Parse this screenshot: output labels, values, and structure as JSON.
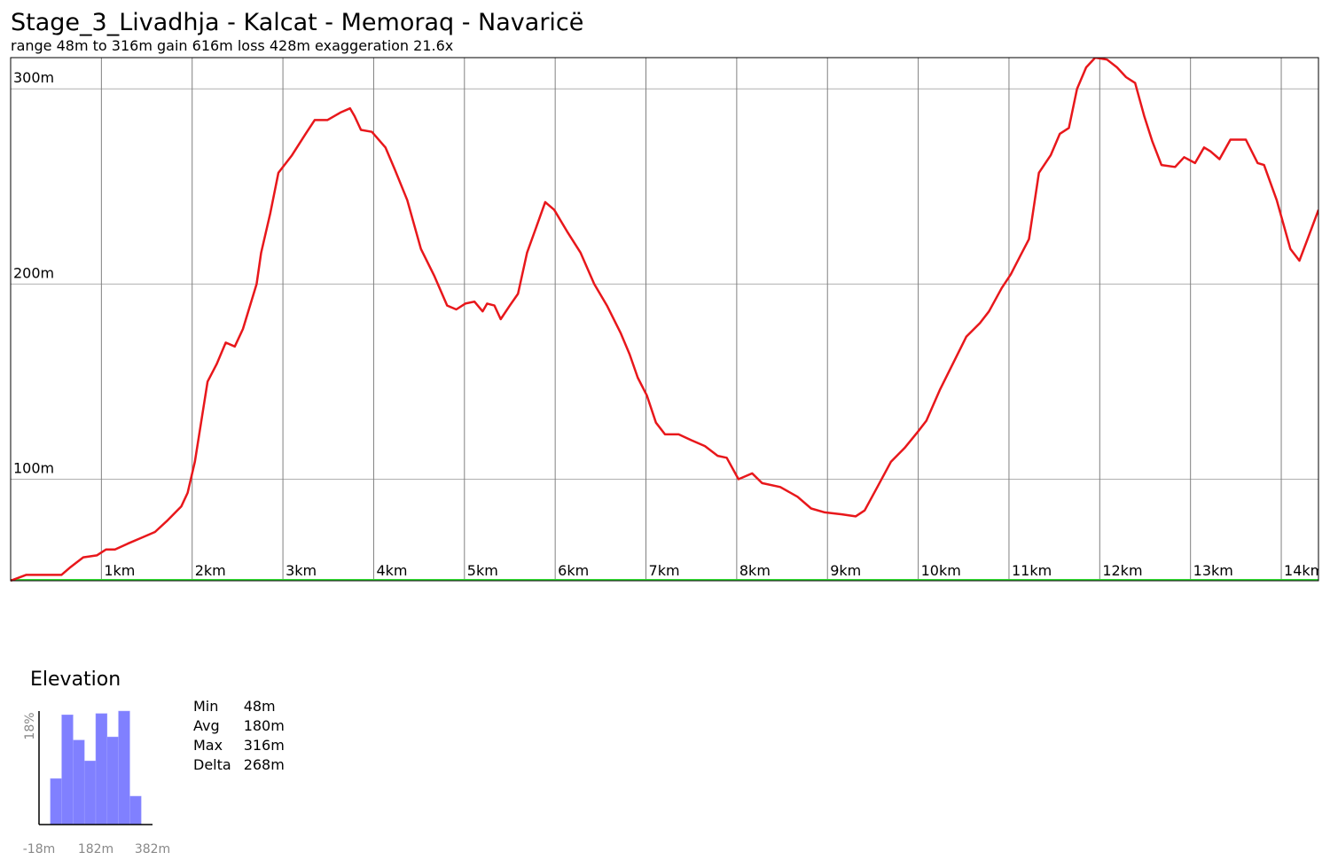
{
  "chart_data": [
    {
      "type": "line",
      "title": "Stage_3_Livadhja - Kalcat - Memoraq - Navaricë",
      "subtitle": "range 48m to 316m  gain 616m  loss 428m  exaggeration 21.6x",
      "x": [
        0.0,
        0.17,
        0.36,
        0.56,
        0.66,
        0.8,
        0.95,
        1.05,
        1.15,
        1.29,
        1.44,
        1.59,
        1.73,
        1.88,
        1.95,
        2.03,
        2.17,
        2.27,
        2.37,
        2.47,
        2.56,
        2.71,
        2.76,
        2.86,
        2.95,
        3.1,
        3.25,
        3.35,
        3.49,
        3.64,
        3.74,
        3.79,
        3.86,
        3.98,
        4.13,
        4.23,
        4.37,
        4.52,
        4.67,
        4.81,
        4.91,
        5.01,
        5.11,
        5.2,
        5.25,
        5.33,
        5.4,
        5.5,
        5.59,
        5.69,
        5.79,
        5.89,
        5.99,
        6.13,
        6.28,
        6.43,
        6.57,
        6.72,
        6.82,
        6.91,
        7.01,
        7.11,
        7.21,
        7.36,
        7.5,
        7.65,
        7.79,
        7.89,
        8.02,
        8.17,
        8.28,
        8.48,
        8.67,
        8.82,
        8.97,
        9.16,
        9.31,
        9.41,
        9.55,
        9.7,
        9.85,
        9.99,
        10.09,
        10.24,
        10.38,
        10.53,
        10.68,
        10.78,
        10.92,
        11.02,
        11.12,
        11.22,
        11.33,
        11.46,
        11.56,
        11.66,
        11.75,
        11.85,
        11.95,
        12.08,
        12.19,
        12.29,
        12.39,
        12.49,
        12.58,
        12.68,
        12.83,
        12.93,
        13.05,
        13.15,
        13.22,
        13.32,
        13.44,
        13.61,
        13.74,
        13.81,
        13.95,
        14.1,
        14.2,
        14.29,
        14.41
      ],
      "values": [
        48,
        51,
        51,
        51,
        55,
        60,
        61,
        64,
        64,
        67,
        70,
        73,
        79,
        86,
        93,
        109,
        150,
        159,
        170,
        168,
        177,
        200,
        216,
        236,
        257,
        266,
        277,
        284,
        284,
        288,
        290,
        286,
        279,
        278,
        270,
        259,
        243,
        218,
        204,
        189,
        187,
        190,
        191,
        186,
        190,
        189,
        182,
        189,
        195,
        216,
        229,
        242,
        238,
        227,
        216,
        200,
        189,
        175,
        164,
        152,
        143,
        129,
        123,
        123,
        120,
        117,
        112,
        111,
        100,
        103,
        98,
        96,
        91,
        85,
        83,
        82,
        81,
        84,
        96,
        109,
        116,
        124,
        130,
        146,
        159,
        173,
        180,
        186,
        198,
        205,
        214,
        223,
        257,
        266,
        277,
        280,
        300,
        311,
        316,
        315,
        311,
        306,
        303,
        286,
        273,
        261,
        260,
        265,
        262,
        270,
        268,
        264,
        274,
        274,
        262,
        261,
        243,
        218,
        212,
        223,
        238
      ],
      "color": "#e8171b",
      "xlim": [
        0,
        14.41
      ],
      "ylim": [
        48,
        316
      ],
      "xticks": [
        {
          "value": 1,
          "label": "1km"
        },
        {
          "value": 2,
          "label": "2km"
        },
        {
          "value": 3,
          "label": "3km"
        },
        {
          "value": 4,
          "label": "4km"
        },
        {
          "value": 5,
          "label": "5km"
        },
        {
          "value": 6,
          "label": "6km"
        },
        {
          "value": 7,
          "label": "7km"
        },
        {
          "value": 8,
          "label": "8km"
        },
        {
          "value": 9,
          "label": "9km"
        },
        {
          "value": 10,
          "label": "10km"
        },
        {
          "value": 11,
          "label": "11km"
        },
        {
          "value": 12,
          "label": "12km"
        },
        {
          "value": 13,
          "label": "13km"
        },
        {
          "value": 14,
          "label": "14km"
        }
      ],
      "yticks": [
        {
          "value": 100,
          "label": "100m"
        },
        {
          "value": 200,
          "label": "200m"
        },
        {
          "value": 300,
          "label": "300m"
        }
      ],
      "grid": true
    },
    {
      "type": "histogram",
      "title": "Elevation",
      "bins": [
        22,
        62,
        102,
        142,
        182,
        222,
        262,
        302,
        342
      ],
      "values": [
        7.3,
        17.4,
        13.4,
        10.1,
        17.6,
        13.9,
        18,
        4.5
      ],
      "color": "#8080ff",
      "xlim": [
        -18,
        382
      ],
      "ylim": [
        0,
        18
      ],
      "xticks": [
        {
          "value": -18,
          "label": "-18m"
        },
        {
          "value": 182,
          "label": "182m"
        },
        {
          "value": 382,
          "label": "382m"
        }
      ],
      "yticks": [
        {
          "value": 18,
          "label": "18%"
        }
      ]
    }
  ],
  "stats": {
    "rows": [
      [
        "Min",
        "48m"
      ],
      [
        "Avg",
        "180m"
      ],
      [
        "Max",
        "316m"
      ],
      [
        "Delta",
        "268m"
      ]
    ]
  }
}
